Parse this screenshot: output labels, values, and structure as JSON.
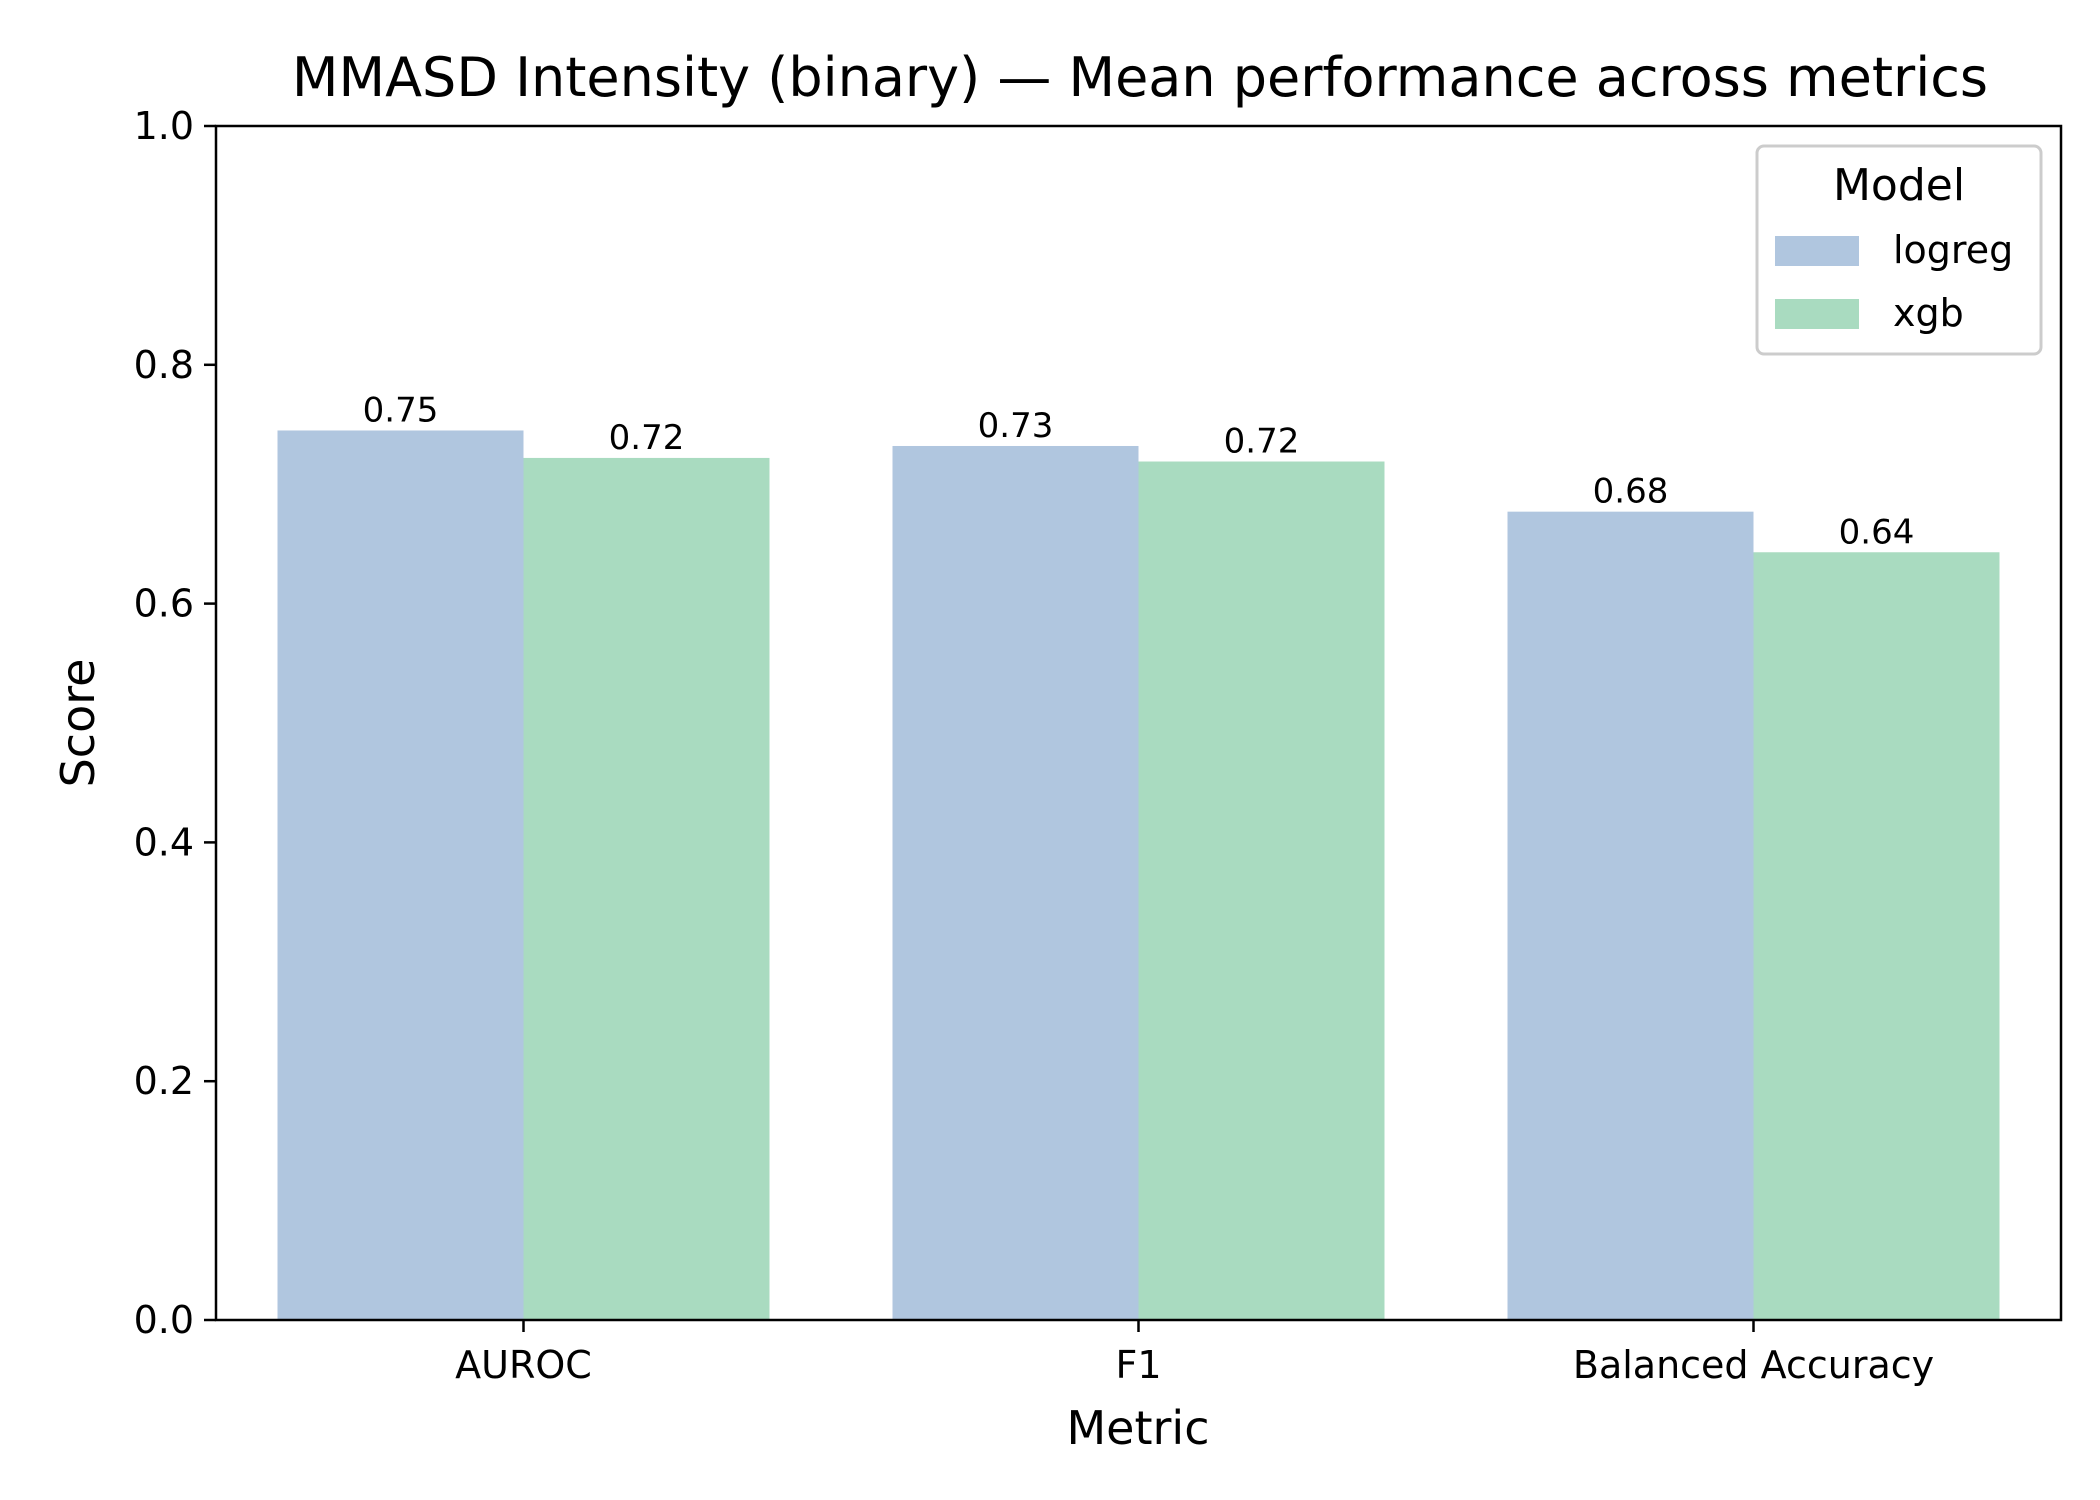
{
  "chart_data": {
    "type": "bar",
    "title": "MMASD Intensity (binary) — Mean performance across metrics",
    "xlabel": "Metric",
    "ylabel": "Score",
    "ylim": [
      0,
      1.0
    ],
    "yticks": [
      "0.0",
      "0.2",
      "0.4",
      "0.6",
      "0.8",
      "1.0"
    ],
    "categories": [
      "AUROC",
      "F1",
      "Balanced Accuracy"
    ],
    "series": [
      {
        "name": "logreg",
        "color": "#b0c6df",
        "values": [
          0.745,
          0.732,
          0.677
        ],
        "labels": [
          "0.75",
          "0.73",
          "0.68"
        ]
      },
      {
        "name": "xgb",
        "color": "#a9dbc0",
        "values": [
          0.722,
          0.719,
          0.643
        ],
        "labels": [
          "0.72",
          "0.72",
          "0.64"
        ]
      }
    ],
    "legend": {
      "title": "Model",
      "position": "top-right"
    },
    "grid": false
  }
}
